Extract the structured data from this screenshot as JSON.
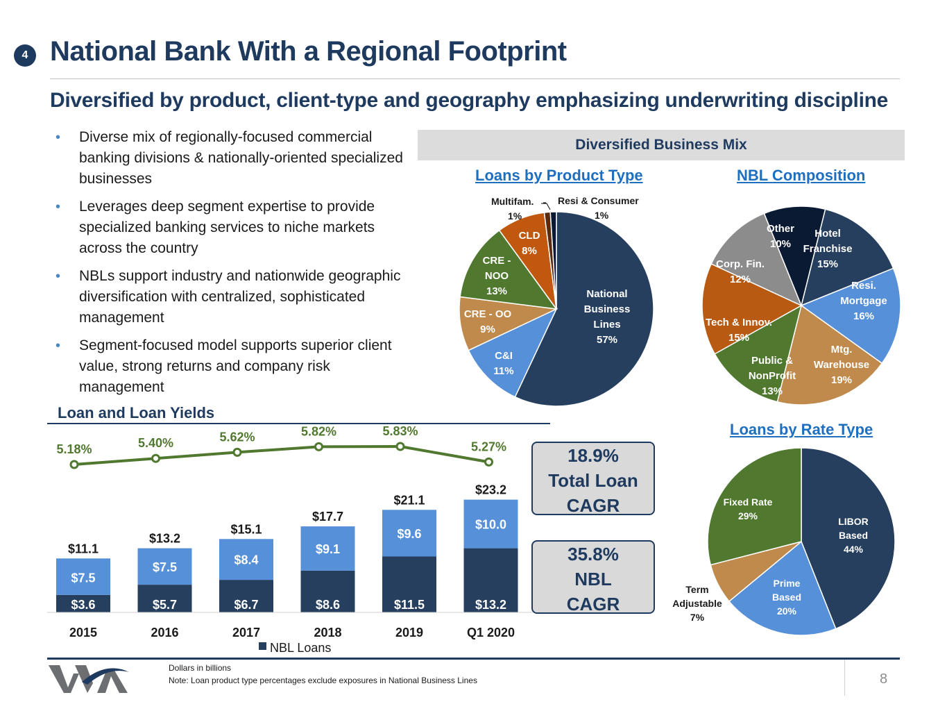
{
  "header": {
    "section_number": "4",
    "title": "National Bank With a Regional Footprint",
    "subtitle": "Diversified by product, client-type and geography emphasizing underwriting discipline"
  },
  "bullets": [
    "Diverse mix of regionally-focused commercial banking divisions & nationally-oriented specialized businesses",
    "Leverages deep segment expertise to provide specialized banking services to niche markets across the country",
    "NBLs support industry and nationwide geographic diversification with centralized, sophisticated management",
    "Segment-focused model supports superior client value, strong returns and company risk management"
  ],
  "mix_header": "Diversified Business Mix",
  "cagr_boxes": [
    {
      "value": "18.9%",
      "line2": "Total Loan",
      "line3": "CAGR"
    },
    {
      "value": "35.8%",
      "line2": "NBL",
      "line3": "CAGR"
    }
  ],
  "footer": {
    "note1": "Dollars in billions",
    "note2": "Note: Loan product type percentages exclude exposures in National Business Lines",
    "page": "8"
  },
  "colors": {
    "navy": "#263f5f",
    "blue": "#5590d9",
    "green": "#50782f",
    "orange": "#b85a12",
    "tan": "#bf8a4b",
    "gray": "#8c8c8c",
    "black_navy": "#0b1a33",
    "cld_brown": "#c0590f"
  },
  "chart_data": [
    {
      "type": "bar",
      "title": "Loan and Loan Yields",
      "categories": [
        "2015",
        "2016",
        "2017",
        "2018",
        "2019",
        "Q1 2020"
      ],
      "series": [
        {
          "name": "NBL Loans",
          "values": [
            3.6,
            5.7,
            6.7,
            8.6,
            11.5,
            13.2
          ],
          "labels": [
            "$3.6",
            "$5.7",
            "$6.7",
            "$8.6",
            "$11.5",
            "$13.2"
          ],
          "color": "#263f5f"
        },
        {
          "name": "",
          "values": [
            7.5,
            7.5,
            8.4,
            9.1,
            9.6,
            10.0
          ],
          "labels": [
            "$7.5",
            "$7.5",
            "$8.4",
            "$9.1",
            "$9.6",
            "$10.0"
          ],
          "color": "#5590d9"
        }
      ],
      "totals": [
        11.1,
        13.2,
        15.1,
        17.7,
        21.1,
        23.2
      ],
      "total_labels": [
        "$11.1",
        "$13.2",
        "$15.1",
        "$17.7",
        "$21.1",
        "$23.2"
      ],
      "yield_line": {
        "values": [
          5.18,
          5.4,
          5.62,
          5.82,
          5.83,
          5.27
        ],
        "labels": [
          "5.18%",
          "5.40%",
          "5.62%",
          "5.82%",
          "5.83%",
          "5.27%"
        ],
        "color": "#50782f"
      },
      "legend": "NBL Loans",
      "ylim": [
        0,
        25
      ]
    },
    {
      "type": "pie",
      "title": "Loans by Product Type",
      "slices": [
        {
          "label": "National Business Lines",
          "value": 57,
          "pct": "57%",
          "color": "#263f5f"
        },
        {
          "label": "C&I",
          "value": 11,
          "pct": "11%",
          "color": "#5590d9"
        },
        {
          "label": "CRE - OO",
          "value": 9,
          "pct": "9%",
          "color": "#bf8a4b"
        },
        {
          "label": "CRE - NOO",
          "value": 13,
          "pct": "13%",
          "color": "#50782f"
        },
        {
          "label": "CLD",
          "value": 8,
          "pct": "8%",
          "color": "#c0590f"
        },
        {
          "label": "Multifam.",
          "value": 1,
          "pct": "1%",
          "color": "#5a2a10"
        },
        {
          "label": "Resi & Consumer",
          "value": 1,
          "pct": "1%",
          "color": "#0b1a33"
        }
      ]
    },
    {
      "type": "pie",
      "title": "NBL Composition",
      "slices": [
        {
          "label": "Hotel Franchise",
          "value": 15,
          "pct": "15%",
          "color": "#263f5f"
        },
        {
          "label": "Resi. Mortgage",
          "value": 16,
          "pct": "16%",
          "color": "#5590d9"
        },
        {
          "label": "Mtg. Warehouse",
          "value": 19,
          "pct": "19%",
          "color": "#bf8a4b"
        },
        {
          "label": "Public & NonProfit",
          "value": 13,
          "pct": "13%",
          "color": "#50782f"
        },
        {
          "label": "Tech & Innov.",
          "value": 15,
          "pct": "15%",
          "color": "#b85a12"
        },
        {
          "label": "Corp. Fin.",
          "value": 12,
          "pct": "12%",
          "color": "#8c8c8c"
        },
        {
          "label": "Other",
          "value": 10,
          "pct": "10%",
          "color": "#0b1a33"
        }
      ]
    },
    {
      "type": "pie",
      "title": "Loans by Rate Type",
      "slices": [
        {
          "label": "LIBOR Based",
          "value": 44,
          "pct": "44%",
          "color": "#263f5f"
        },
        {
          "label": "Prime Based",
          "value": 20,
          "pct": "20%",
          "color": "#5590d9"
        },
        {
          "label": "Term Adjustable",
          "value": 7,
          "pct": "7%",
          "color": "#bf8a4b"
        },
        {
          "label": "Fixed Rate",
          "value": 29,
          "pct": "29%",
          "color": "#50782f"
        }
      ]
    }
  ]
}
